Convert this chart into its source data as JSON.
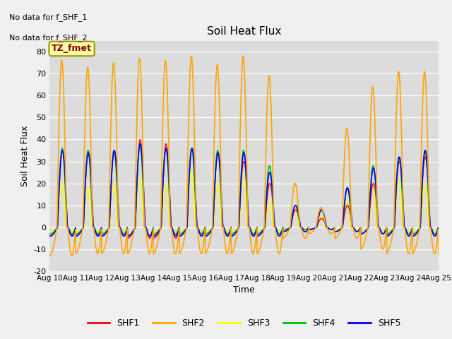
{
  "title": "Soil Heat Flux",
  "xlabel": "Time",
  "ylabel": "Soil Heat Flux",
  "ylim": [
    -20,
    85
  ],
  "yticks": [
    -20,
    -10,
    0,
    10,
    20,
    30,
    40,
    50,
    60,
    70,
    80
  ],
  "bg_color": "#dcdcdc",
  "text_above_1": "No data for f_SHF_1",
  "text_above_2": "No data for f_SHF_2",
  "box_label": "TZ_fmet",
  "legend_entries": [
    "SHF1",
    "SHF2",
    "SHF3",
    "SHF4",
    "SHF5"
  ],
  "series_colors": {
    "SHF1": "#ff0000",
    "SHF2": "#ffa500",
    "SHF3": "#ffff00",
    "SHF4": "#00bb00",
    "SHF5": "#0000ff"
  },
  "n_days": 15,
  "xtick_positions": [
    0,
    1,
    2,
    3,
    4,
    5,
    6,
    7,
    8,
    9,
    10,
    11,
    12,
    13,
    14,
    15
  ],
  "xtick_labels": [
    "Aug 10",
    "Aug 11",
    "Aug 12",
    "Aug 13",
    "Aug 14",
    "Aug 15",
    "Aug 16",
    "Aug 17",
    "Aug 18",
    "Aug 19",
    "Aug 20",
    "Aug 21",
    "Aug 22",
    "Aug 23",
    "Aug 24",
    "Aug 25"
  ]
}
